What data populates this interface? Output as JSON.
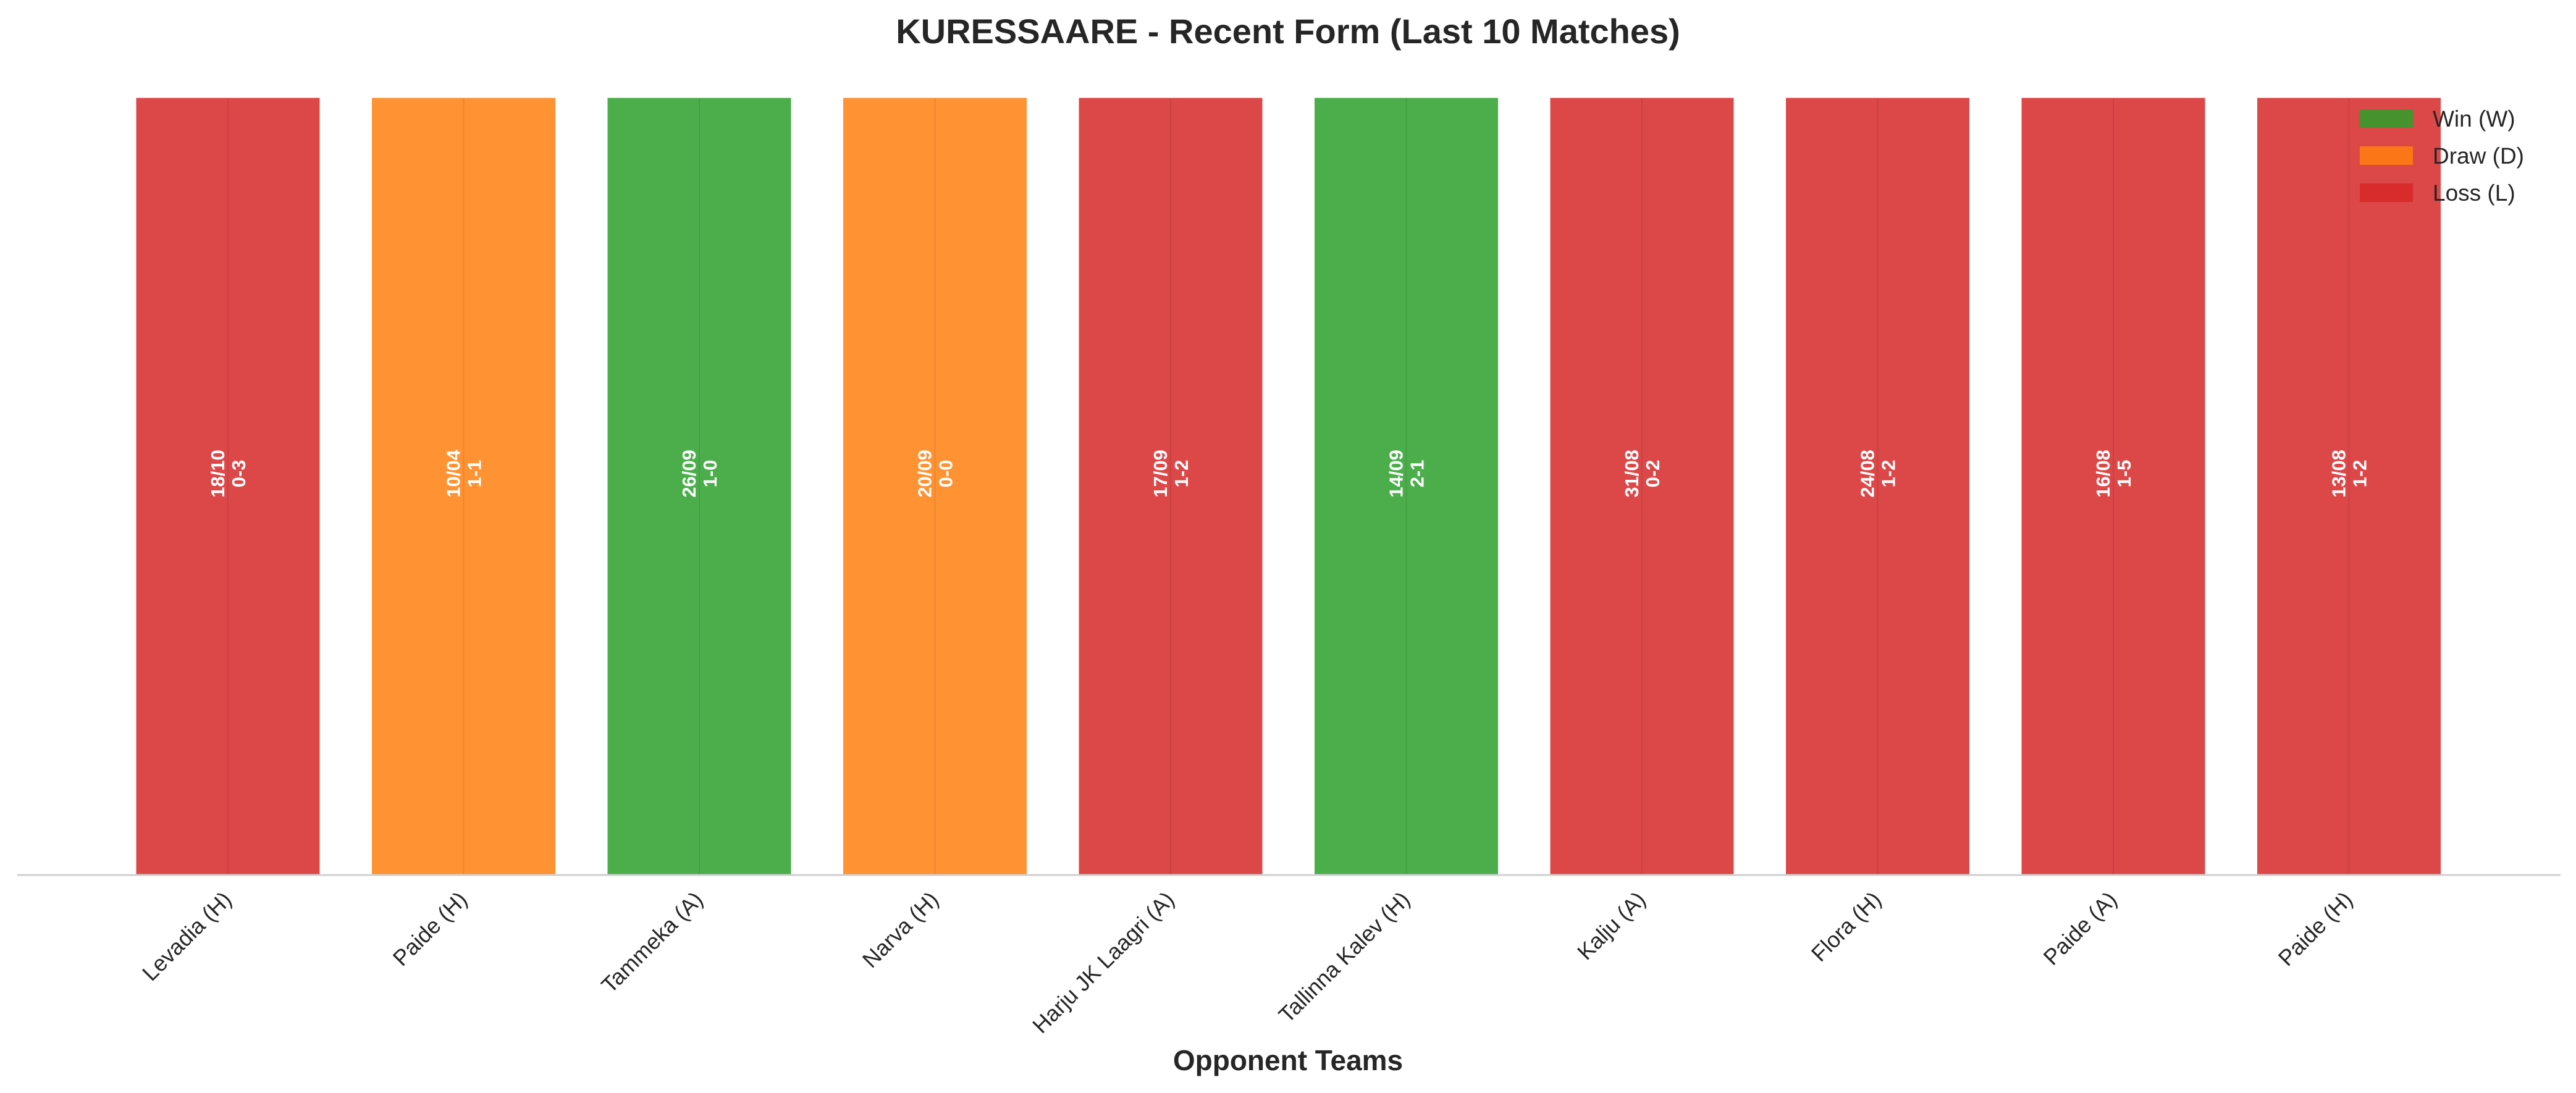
{
  "chart_data": {
    "type": "bar",
    "title": "KURESSAARE - Recent Form (Last 10 Matches)",
    "xlabel": "Opponent Teams",
    "ylabel": "",
    "ylim": [
      0,
      1
    ],
    "grid": false,
    "legend_position": "top-right",
    "categories": [
      "Levadia (H)",
      "Paide (H)",
      "Tammeka (A)",
      "Narva (H)",
      "Harju JK Laagri (A)",
      "Tallinna Kalev (H)",
      "Kalju (A)",
      "Flora (H)",
      "Paide (A)",
      "Paide (H)"
    ],
    "values": [
      1,
      1,
      1,
      1,
      1,
      1,
      1,
      1,
      1,
      1
    ],
    "results": [
      "L",
      "D",
      "W",
      "D",
      "L",
      "W",
      "L",
      "L",
      "L",
      "L"
    ],
    "dates": [
      "18/10",
      "10/04",
      "26/09",
      "20/09",
      "17/09",
      "14/09",
      "31/08",
      "24/08",
      "16/08",
      "13/08"
    ],
    "scores": [
      "0-3",
      "1-1",
      "1-0",
      "0-0",
      "1-2",
      "2-1",
      "0-2",
      "1-2",
      "1-5",
      "1-2"
    ],
    "legend": [
      {
        "key": "W",
        "label": "Win (W)"
      },
      {
        "key": "D",
        "label": "Draw (D)"
      },
      {
        "key": "L",
        "label": "Loss (L)"
      }
    ],
    "colors": {
      "W": "#2ca02c",
      "D": "#ff7f0e",
      "L": "#d62728"
    }
  }
}
